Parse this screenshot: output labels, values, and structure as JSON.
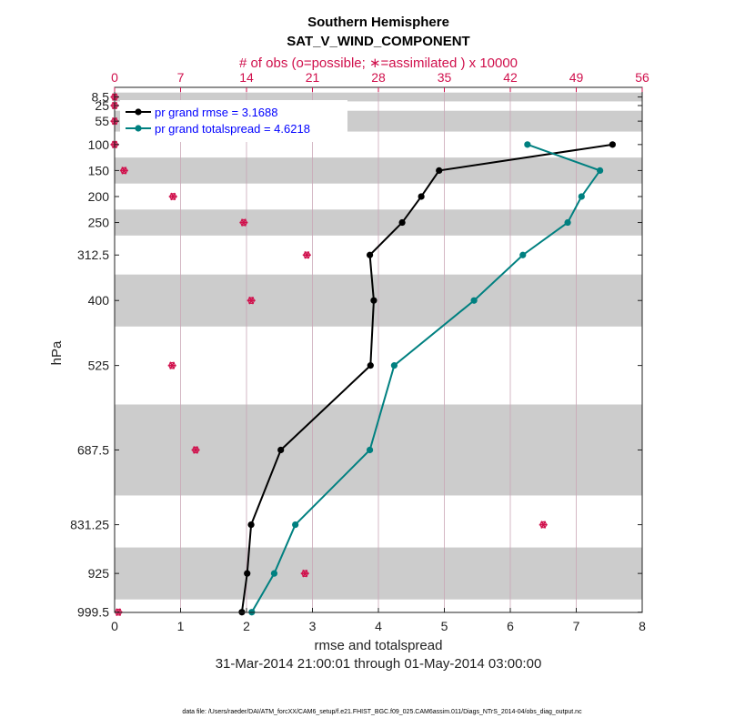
{
  "chart_data": {
    "type": "line",
    "title": "Southern Hemisphere",
    "subtitle": "SAT_V_WIND_COMPONENT",
    "top_axis_label": "# of obs (o=possible; ∗=assimilated ) x 10000",
    "xlabel": "rmse and totalspread",
    "ylabel": "hPa",
    "date_range": "31-Mar-2014 21:00:01 through 01-May-2014 03:00:00",
    "footnote": "data file: /Users/raeder/DAI/ATM_forcXX/CAM6_setup/f.e21.FHIST_BGC.f09_025.CAM6assim.011/Diags_NTrS_2014-04/obs_diag_output.nc",
    "xlim": [
      0,
      8
    ],
    "xticks": [
      "0",
      "1",
      "2",
      "3",
      "4",
      "5",
      "6",
      "7",
      "8"
    ],
    "top_xlim": [
      0,
      56
    ],
    "top_xticks": [
      "0",
      "7",
      "14",
      "21",
      "28",
      "35",
      "42",
      "49",
      "56"
    ],
    "ylim": [
      1000,
      0
    ],
    "levels": [
      8.5,
      25,
      55,
      100,
      150,
      200,
      250,
      312.5,
      400,
      525,
      687.5,
      831.25,
      925,
      999.5
    ],
    "level_labels": [
      "8.5",
      "25",
      "55",
      "100",
      "150",
      "200",
      "250",
      "312.5",
      "400",
      "525",
      "687.5",
      "831.25",
      "925",
      "999.5"
    ],
    "shaded_bands": [
      [
        0,
        17
      ],
      [
        35,
        75
      ],
      [
        125,
        175
      ],
      [
        225,
        275
      ],
      [
        350,
        450
      ],
      [
        600,
        775
      ],
      [
        875,
        975
      ]
    ],
    "grid": "vertical",
    "legend_position": "top-left",
    "series": [
      {
        "name": "pr grand rmse = 3.1688",
        "color": "#000000",
        "x": [
          7.55,
          4.92,
          4.65,
          4.36,
          3.87,
          3.93,
          3.88,
          2.52,
          2.07,
          2.01,
          1.93
        ],
        "y": [
          100,
          150,
          200,
          250,
          312.5,
          400,
          525,
          687.5,
          831.25,
          925,
          999.5
        ]
      },
      {
        "name": "pr grand totalspread = 4.6218",
        "color": "#008080",
        "x": [
          6.26,
          7.36,
          7.08,
          6.87,
          6.19,
          5.45,
          4.24,
          3.87,
          2.74,
          2.42,
          2.08
        ],
        "y": [
          100,
          150,
          200,
          250,
          312.5,
          400,
          525,
          687.5,
          831.25,
          925,
          999.5
        ]
      }
    ],
    "obs_counts": {
      "color": "#d0104c",
      "levels": [
        8.5,
        25,
        55,
        100,
        150,
        200,
        250,
        312.5,
        400,
        525,
        687.5,
        831.25,
        925,
        999.5
      ],
      "possible": [
        0,
        0,
        0,
        0,
        1,
        6.2,
        13.7,
        20.4,
        14.5,
        6.1,
        8.6,
        45.5,
        20.2,
        0.4
      ],
      "assimilated": [
        0,
        0,
        0,
        0,
        1,
        6.2,
        13.7,
        20.4,
        14.5,
        6.1,
        8.6,
        45.5,
        20.2,
        0.4
      ]
    }
  }
}
